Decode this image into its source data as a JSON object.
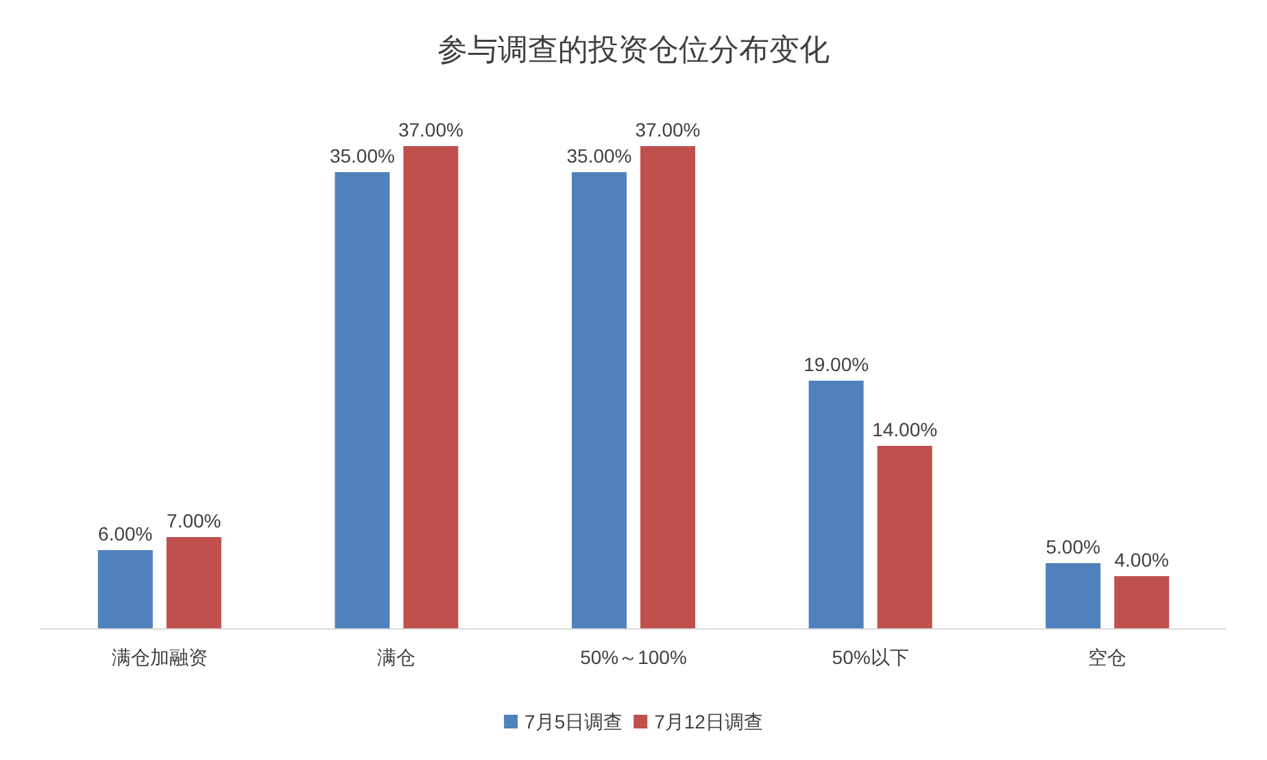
{
  "chart_data": {
    "type": "bar",
    "title": "参与调查的投资仓位分布变化",
    "categories": [
      "满仓加融资",
      "满仓",
      "50%～100%",
      "50%以下",
      "空仓"
    ],
    "series": [
      {
        "name": "7月5日调查",
        "color": "#4f81bd",
        "values": [
          6,
          35,
          35,
          19,
          5
        ],
        "value_labels": [
          "6.00%",
          "35.00%",
          "35.00%",
          "19.00%",
          "5.00%"
        ]
      },
      {
        "name": "7月12日调查",
        "color": "#c0504d",
        "values": [
          7,
          37,
          37,
          14,
          4
        ],
        "value_labels": [
          "7.00%",
          "37.00%",
          "37.00%",
          "14.00%",
          "4.00%"
        ]
      }
    ],
    "legend": "bottom"
  }
}
